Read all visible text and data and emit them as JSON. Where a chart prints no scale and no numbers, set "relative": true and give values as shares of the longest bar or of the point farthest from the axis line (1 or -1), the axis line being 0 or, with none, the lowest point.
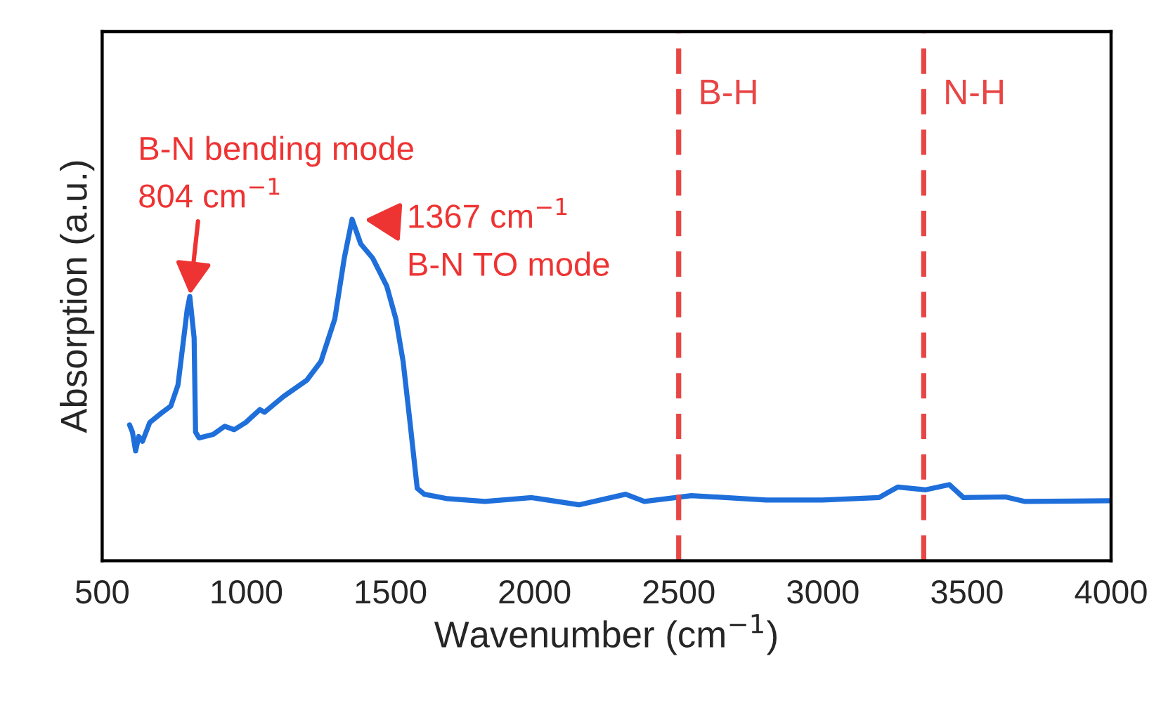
{
  "chart_data": {
    "type": "line",
    "relative": true,
    "xlabel": "Wavenumber (cm$^{−1}$)",
    "ylabel": "Absorption (a.u.)",
    "xlim": [
      500,
      4000
    ],
    "xticks": [
      500,
      1000,
      1500,
      2000,
      2500,
      3000,
      3500,
      4000
    ],
    "grid": false,
    "legend": false,
    "series": [
      {
        "color": "#1f6fdb",
        "x": [
          595,
          605,
          616,
          627,
          640,
          665,
          706,
          738,
          763,
          779,
          795,
          804,
          819,
          824,
          836,
          885,
          925,
          958,
          998,
          1047,
          1063,
          1129,
          1210,
          1259,
          1307,
          1340,
          1367,
          1397,
          1438,
          1487,
          1519,
          1544,
          1568,
          1593,
          1617,
          1698,
          1828,
          1991,
          2154,
          2316,
          2381,
          2544,
          2804,
          2999,
          3195,
          3260,
          3357,
          3439,
          3488,
          3634,
          3699,
          3995
        ],
        "values": [
          0.398,
          0.377,
          0.322,
          0.364,
          0.35,
          0.405,
          0.433,
          0.453,
          0.515,
          0.625,
          0.736,
          0.774,
          0.653,
          0.377,
          0.36,
          0.37,
          0.394,
          0.384,
          0.405,
          0.443,
          0.435,
          0.481,
          0.529,
          0.584,
          0.708,
          0.887,
          1.0,
          0.928,
          0.887,
          0.805,
          0.708,
          0.584,
          0.405,
          0.212,
          0.195,
          0.182,
          0.174,
          0.185,
          0.164,
          0.195,
          0.174,
          0.191,
          0.178,
          0.178,
          0.185,
          0.216,
          0.208,
          0.223,
          0.185,
          0.187,
          0.174,
          0.176
        ]
      }
    ],
    "ref_lines": [
      {
        "axis": "x",
        "value": 2500,
        "label": "B-H",
        "color": "#e84545",
        "line_style": "dashed"
      },
      {
        "axis": "x",
        "value": 3350,
        "label": "N-H",
        "color": "#e84545",
        "line_style": "dashed"
      }
    ],
    "annotations": [
      {
        "text": "B-N bending mode\n804 cm$^{−1}$",
        "x": 804,
        "y": 0.774
      },
      {
        "text": "1367 cm$^{−1}$",
        "x": 1367,
        "y": 1.0
      },
      "B-N TO mode"
    ]
  }
}
